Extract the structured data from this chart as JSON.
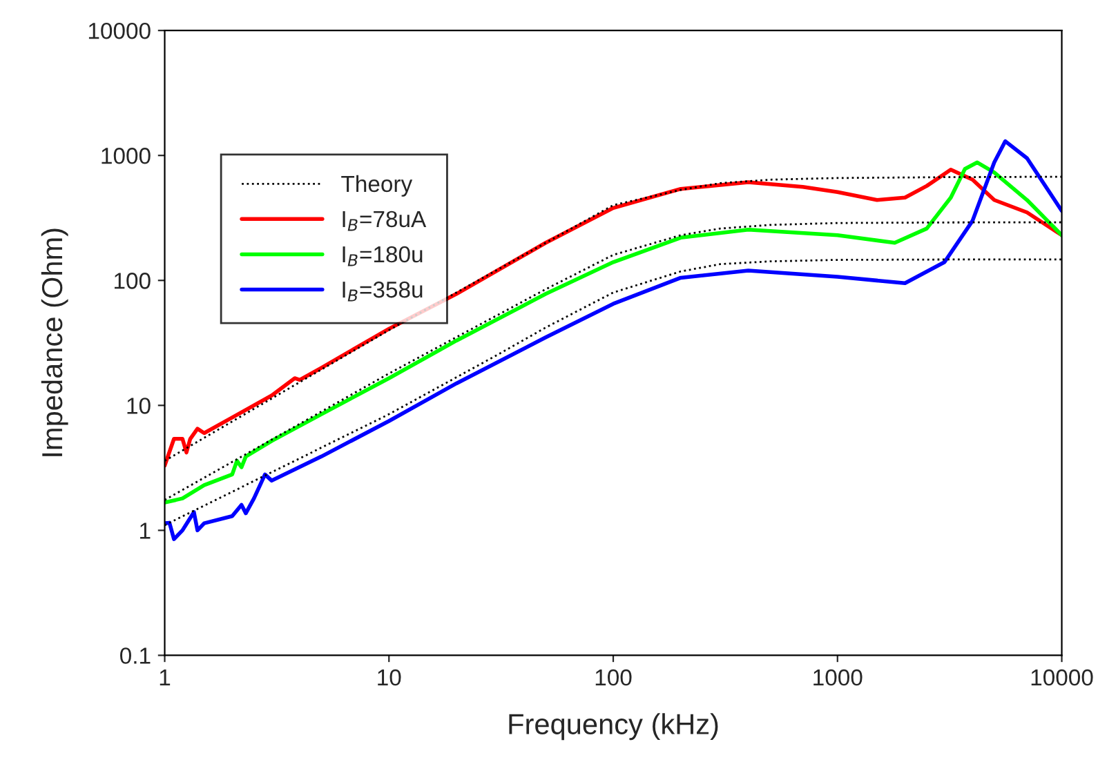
{
  "chart_data": {
    "type": "line",
    "xlabel": "Frequency (kHz)",
    "ylabel": "Impedance (Ohm)",
    "log": "xy",
    "grid": false,
    "legend": "top left",
    "xlim": [
      1,
      10000
    ],
    "xticks": [
      1,
      10,
      100,
      1000,
      10000
    ],
    "ylim": [
      0.1,
      10000
    ],
    "yticks": [
      0.1,
      1,
      10,
      100,
      1000,
      10000
    ],
    "series": [
      {
        "name": "Theory",
        "color": "#000000",
        "line_style": "dotted",
        "x": [
          1,
          10,
          30,
          50,
          100,
          200,
          300,
          500,
          1000,
          3000,
          10000
        ],
        "values": [
          3.6,
          40,
          120,
          200,
          400,
          530,
          600,
          640,
          660,
          670,
          676
        ]
      },
      {
        "color": "#000000",
        "line_style": "dotted",
        "x": [
          1,
          10,
          30,
          50,
          100,
          200,
          300,
          500,
          1000,
          3000,
          10000
        ],
        "values": [
          1.75,
          18,
          52,
          85,
          160,
          230,
          260,
          278,
          288,
          291,
          292
        ]
      },
      {
        "color": "#000000",
        "line_style": "dotted",
        "x": [
          1,
          10,
          30,
          50,
          100,
          200,
          300,
          500,
          1000,
          3000,
          10000
        ],
        "values": [
          1.1,
          8.5,
          25,
          42,
          80,
          118,
          135,
          142,
          146,
          147,
          147
        ]
      },
      {
        "name": "I$_{B}$=78uA",
        "color": "#ff0000",
        "line_style": "solid",
        "x": [
          1,
          1.1,
          1.2,
          1.25,
          1.3,
          1.4,
          1.5,
          2,
          3,
          3.8,
          4,
          5,
          10,
          20,
          50,
          100,
          200,
          400,
          700,
          1000,
          1500,
          2000,
          2500,
          3200,
          4000,
          5000,
          7000,
          10000
        ],
        "values": [
          3.3,
          5.4,
          5.4,
          4.2,
          5.4,
          6.5,
          6,
          8,
          12,
          16.5,
          16,
          20,
          41,
          78,
          200,
          380,
          540,
          610,
          560,
          510,
          440,
          460,
          570,
          770,
          640,
          440,
          350,
          230
        ]
      },
      {
        "name": "I$_{B}$=180u",
        "color": "#00ff00",
        "line_style": "solid",
        "x": [
          1,
          1.2,
          1.5,
          2,
          2.1,
          2.2,
          2.3,
          3,
          5,
          10,
          20,
          50,
          100,
          200,
          400,
          1000,
          1800,
          2500,
          3200,
          3700,
          4200,
          5000,
          7000,
          10000
        ],
        "values": [
          1.67,
          1.8,
          2.3,
          2.8,
          3.6,
          3.2,
          3.9,
          5.2,
          8.5,
          16.5,
          33,
          78,
          140,
          220,
          255,
          230,
          200,
          260,
          460,
          780,
          880,
          730,
          440,
          230
        ]
      },
      {
        "name": "I$_{B}$=358u",
        "color": "#0000ff",
        "line_style": "solid",
        "x": [
          1,
          1.05,
          1.1,
          1.2,
          1.35,
          1.4,
          1.5,
          2,
          2.2,
          2.3,
          2.5,
          2.8,
          3,
          5,
          10,
          20,
          50,
          100,
          200,
          400,
          1000,
          2000,
          3000,
          4000,
          5000,
          5600,
          7000,
          10000
        ],
        "values": [
          1.14,
          1.15,
          0.85,
          1.0,
          1.4,
          1.0,
          1.14,
          1.3,
          1.6,
          1.37,
          1.8,
          2.8,
          2.5,
          3.9,
          7.5,
          15,
          35,
          65,
          105,
          120,
          107,
          95,
          140,
          300,
          880,
          1300,
          950,
          360
        ]
      }
    ]
  }
}
